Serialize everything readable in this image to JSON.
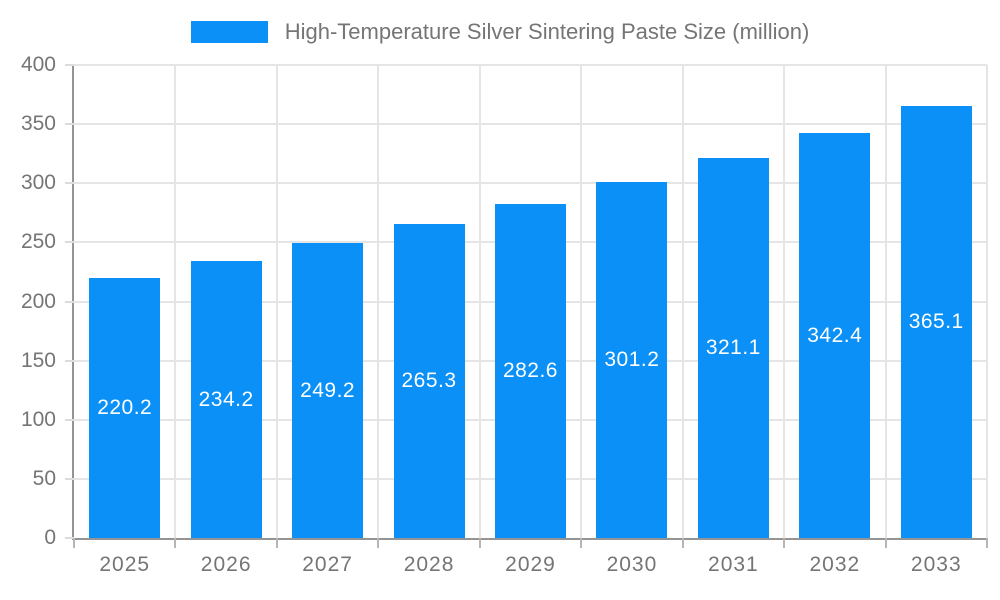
{
  "chart_data": {
    "type": "bar",
    "title": "High-Temperature Silver Sintering Paste Size (million)",
    "categories": [
      "2025",
      "2026",
      "2027",
      "2028",
      "2029",
      "2030",
      "2031",
      "2032",
      "2033"
    ],
    "values": [
      220.2,
      234.2,
      249.2,
      265.3,
      282.6,
      301.2,
      321.1,
      342.4,
      365.1
    ],
    "xlabel": "",
    "ylabel": "",
    "ylim": [
      0,
      400
    ],
    "ytick_step": 50,
    "yticks": [
      0,
      50,
      100,
      150,
      200,
      250,
      300,
      350,
      400
    ],
    "grid": "both",
    "legend_position": "top",
    "value_label_position": "inside-center",
    "value_label_decimals": 1,
    "colors": {
      "bar": "#0a90f6",
      "axis_text": "#757575",
      "value_text": "#ffffff",
      "gridline": "#e5e5e5",
      "axis_line": "#949494"
    }
  }
}
